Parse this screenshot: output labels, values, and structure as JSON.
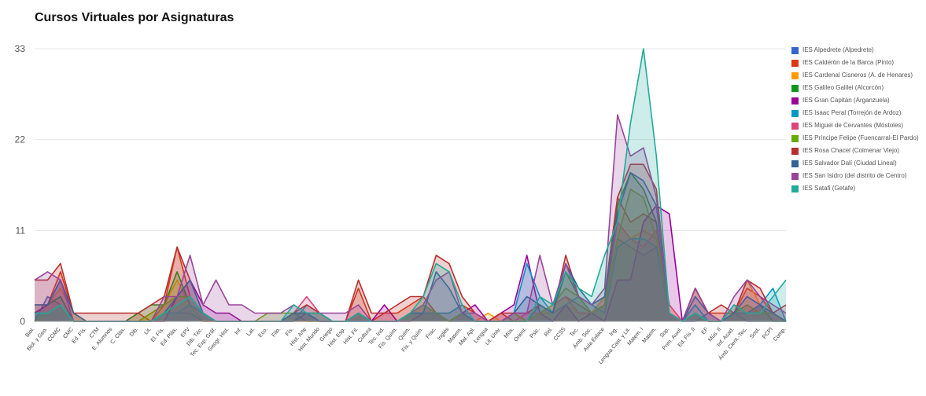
{
  "chart_data": {
    "type": "area",
    "title": "Cursos Virtuales por Asignaturas",
    "xlabel": "",
    "ylabel": "",
    "ylim": [
      0,
      33
    ],
    "yticks": [
      "0",
      "11",
      "22",
      "33"
    ],
    "grid": true,
    "legend_position": "right",
    "categories": [
      "Biol.",
      "Biol. y Geo.",
      "CCMC",
      "CMC",
      "Ed. Fís.",
      "CTM",
      "E. Alumnos",
      "C. Clás.",
      "Dib.",
      "Lit.",
      "El. Fís.",
      "Ed. Plás.",
      "EPV",
      "Dib. Téc.",
      "Tec. Exp. Gráf.",
      "Geogr. Hist.",
      "Inf.",
      "Lat.",
      "Eco.",
      "Filo.",
      "Fís.",
      "Hist. Arte",
      "Hist. Mundo",
      "Griego",
      "Hist. Esp.",
      "Hist. Fil.",
      "Cultura",
      "Tec. Ind.",
      "Fís. Quím.",
      "Quím.",
      "Fís. y Quím.",
      "Frac.",
      "Inglés",
      "Matem.",
      "Mat. Apl.",
      "Lengua",
      "Lit. Univ.",
      "Mús.",
      "Orient.",
      "Psic.",
      "Rel.",
      "CCSS",
      "Tec.",
      "Ámb. Soc.",
      "Aula Enlace",
      "Ing.",
      "Lengua Cast. y Lit.",
      "Matem. I",
      "Matem.",
      "Sop.",
      "Prim. Auxil.",
      "Ed. Fís. II",
      "EF",
      "Mús. II",
      "Inf. Acad.",
      "Ámb. Cient.-Tec.",
      "Sost.",
      "PCPI",
      "Comp."
    ],
    "series": [
      {
        "name": "IES Alpedrete (Alpedrete)",
        "color": "#3366cc",
        "values": [
          0,
          3,
          2,
          0,
          0,
          0,
          0,
          0,
          0,
          0,
          1,
          1,
          1,
          0,
          0,
          0,
          0,
          0,
          0,
          0,
          1,
          0,
          0,
          0,
          0,
          0,
          0,
          0,
          0,
          1,
          2,
          1,
          0,
          0,
          0,
          0,
          0,
          0,
          0,
          0,
          0,
          2,
          0,
          1,
          2,
          10,
          9,
          8,
          9,
          1,
          0,
          0,
          1,
          0,
          1,
          0,
          0,
          0,
          0
        ]
      },
      {
        "name": "IES Calderón de la Barca (Pinto)",
        "color": "#dc3912",
        "values": [
          2,
          2,
          6,
          1,
          0,
          0,
          0,
          0,
          1,
          0,
          2,
          9,
          3,
          1,
          0,
          0,
          0,
          0,
          0,
          0,
          1,
          1,
          0,
          0,
          0,
          4,
          0,
          1,
          1,
          2,
          3,
          1,
          1,
          2,
          1,
          0,
          1,
          0,
          0,
          1,
          2,
          3,
          2,
          1,
          3,
          15,
          12,
          13,
          12,
          1,
          0,
          4,
          1,
          1,
          1,
          4,
          3,
          1,
          0
        ]
      },
      {
        "name": "IES Cardenal Cisneros (A. de Henares)",
        "color": "#ff9900",
        "values": [
          1,
          2,
          4,
          1,
          0,
          0,
          0,
          0,
          0,
          1,
          2,
          5,
          2,
          0,
          0,
          0,
          0,
          0,
          0,
          0,
          0,
          0,
          0,
          0,
          0,
          1,
          0,
          0,
          0,
          1,
          2,
          1,
          0,
          1,
          0,
          1,
          0,
          0,
          0,
          1,
          1,
          2,
          1,
          1,
          3,
          12,
          10,
          11,
          10,
          2,
          0,
          1,
          0,
          0,
          1,
          5,
          2,
          1,
          0
        ]
      },
      {
        "name": "IES Galileo Galilei (Alcorcón)",
        "color": "#109618",
        "values": [
          1,
          2,
          3,
          0,
          0,
          0,
          0,
          0,
          1,
          2,
          2,
          6,
          2,
          1,
          0,
          0,
          0,
          0,
          0,
          0,
          1,
          1,
          0,
          0,
          0,
          1,
          0,
          0,
          0,
          1,
          1,
          1,
          0,
          1,
          0,
          0,
          0,
          0,
          0,
          2,
          1,
          6,
          3,
          1,
          2,
          14,
          18,
          16,
          12,
          1,
          0,
          1,
          0,
          0,
          2,
          1,
          2,
          0,
          0
        ]
      },
      {
        "name": "IES Gran Capitán (Arganzuela)",
        "color": "#990099",
        "values": [
          1,
          2,
          5,
          0,
          0,
          0,
          0,
          0,
          0,
          0,
          0,
          3,
          5,
          2,
          1,
          1,
          0,
          0,
          0,
          0,
          0,
          1,
          0,
          0,
          0,
          1,
          0,
          2,
          0,
          0,
          1,
          1,
          0,
          1,
          2,
          0,
          1,
          2,
          8,
          1,
          0,
          2,
          0,
          1,
          0,
          5,
          5,
          12,
          14,
          13,
          0,
          1,
          0,
          0,
          1,
          1,
          2,
          1,
          0
        ]
      },
      {
        "name": "IES Isaac Peral (Torrejón de Ardoz)",
        "color": "#0099c6",
        "values": [
          1,
          1,
          2,
          0,
          0,
          0,
          0,
          0,
          0,
          0,
          1,
          1,
          2,
          1,
          0,
          0,
          0,
          0,
          0,
          0,
          0,
          2,
          1,
          0,
          0,
          0,
          0,
          0,
          0,
          1,
          1,
          1,
          1,
          2,
          0,
          0,
          0,
          1,
          7,
          3,
          1,
          2,
          3,
          2,
          1,
          9,
          10,
          10,
          9,
          1,
          0,
          2,
          0,
          0,
          1,
          1,
          2,
          4,
          0
        ]
      },
      {
        "name": "IES Miguel de Cervantes (Móstoles)",
        "color": "#dd4477",
        "values": [
          0,
          1,
          2,
          0,
          0,
          0,
          0,
          0,
          0,
          0,
          1,
          2,
          3,
          1,
          0,
          0,
          0,
          0,
          0,
          0,
          1,
          3,
          1,
          0,
          0,
          1,
          0,
          0,
          0,
          1,
          2,
          1,
          0,
          1,
          0,
          0,
          0,
          0,
          1,
          1,
          2,
          3,
          1,
          1,
          2,
          12,
          10,
          9,
          11,
          2,
          0,
          1,
          0,
          0,
          1,
          2,
          1,
          1,
          0
        ]
      },
      {
        "name": "IES Príncipe Felipe (Fuencarral-El Pardo)",
        "color": "#66aa00",
        "values": [
          0,
          1,
          2,
          0,
          0,
          0,
          0,
          0,
          0,
          1,
          2,
          3,
          3,
          1,
          0,
          0,
          0,
          0,
          1,
          1,
          1,
          1,
          1,
          0,
          0,
          1,
          0,
          0,
          0,
          1,
          2,
          1,
          0,
          1,
          0,
          0,
          0,
          1,
          0,
          1,
          2,
          4,
          3,
          1,
          2,
          10,
          16,
          15,
          10,
          1,
          0,
          1,
          0,
          0,
          1,
          2,
          1,
          1,
          0
        ]
      },
      {
        "name": "IES Rosa Chacel (Colmenar Viejo)",
        "color": "#b82e2e",
        "values": [
          5,
          5,
          7,
          1,
          1,
          1,
          1,
          1,
          1,
          2,
          3,
          9,
          5,
          1,
          0,
          0,
          0,
          0,
          0,
          0,
          1,
          2,
          1,
          0,
          0,
          5,
          1,
          1,
          2,
          3,
          3,
          8,
          7,
          3,
          1,
          0,
          1,
          1,
          1,
          2,
          1,
          8,
          3,
          2,
          3,
          15,
          19,
          19,
          16,
          1,
          0,
          4,
          1,
          2,
          1,
          5,
          4,
          1,
          2
        ]
      },
      {
        "name": "IES Salvador Dalí (Ciudad Lineal)",
        "color": "#316395",
        "values": [
          2,
          2,
          5,
          1,
          0,
          0,
          0,
          0,
          0,
          0,
          1,
          3,
          5,
          1,
          0,
          0,
          0,
          0,
          0,
          0,
          1,
          1,
          0,
          0,
          0,
          1,
          0,
          0,
          0,
          1,
          1,
          6,
          4,
          1,
          0,
          0,
          0,
          1,
          3,
          2,
          1,
          7,
          4,
          2,
          3,
          13,
          18,
          17,
          14,
          1,
          0,
          3,
          1,
          0,
          1,
          3,
          2,
          1,
          0
        ]
      },
      {
        "name": "IES San Isidro (del distrito de Centro)",
        "color": "#994499",
        "values": [
          5,
          6,
          5,
          0,
          0,
          0,
          0,
          0,
          0,
          0,
          3,
          3,
          8,
          2,
          5,
          2,
          2,
          1,
          1,
          1,
          2,
          1,
          1,
          1,
          1,
          2,
          0,
          0,
          0,
          1,
          2,
          5,
          6,
          1,
          1,
          0,
          0,
          1,
          1,
          8,
          2,
          7,
          3,
          2,
          4,
          25,
          20,
          21,
          15,
          1,
          0,
          4,
          1,
          0,
          3,
          5,
          3,
          2,
          1
        ]
      },
      {
        "name": "IES Satafi (Getafe)",
        "color": "#22aa99",
        "values": [
          1,
          1,
          2,
          0,
          0,
          0,
          0,
          0,
          0,
          0,
          1,
          2,
          3,
          1,
          0,
          0,
          0,
          0,
          0,
          0,
          2,
          1,
          1,
          0,
          0,
          1,
          0,
          0,
          0,
          1,
          3,
          7,
          6,
          2,
          0,
          0,
          0,
          0,
          0,
          3,
          2,
          6,
          4,
          3,
          8,
          12,
          24,
          33,
          20,
          1,
          0,
          1,
          0,
          0,
          2,
          1,
          1,
          3,
          5
        ]
      }
    ]
  }
}
